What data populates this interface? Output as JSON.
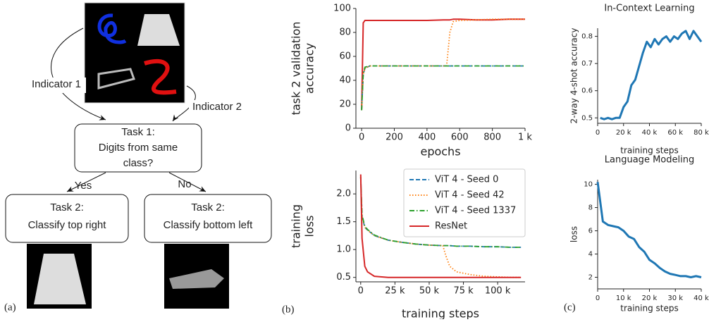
{
  "diagram": {
    "indicator_1": "Indicator 1",
    "indicator_2": "Indicator 2",
    "task_1": [
      "Task 1:",
      "Digits from same",
      "class?"
    ],
    "yes": "Yes",
    "no": "No",
    "task_2_left": [
      "Task 2:",
      "Classify top right"
    ],
    "task_2_right": [
      "Task 2:",
      "Classify bottom left"
    ],
    "panel_a": "(a)",
    "panel_b": "(b)",
    "panel_c": "(c)"
  },
  "chart_data": [
    {
      "type": "line",
      "xlabel": "epochs",
      "ylabel": [
        "task 2  validation",
        "accuracy"
      ],
      "x": [
        0,
        10,
        20,
        50,
        100,
        200,
        300,
        400,
        500,
        520,
        540,
        560,
        600,
        700,
        800,
        900,
        1000
      ],
      "series": [
        {
          "color": "#d62728",
          "linestyle": "solid",
          "values": [
            15,
            88,
            90,
            90,
            90,
            90,
            90,
            90,
            90.5,
            90.5,
            90.5,
            91,
            91,
            90.5,
            90.5,
            91,
            91
          ]
        },
        {
          "color": "#1f77b4",
          "linestyle": "dashed",
          "values": [
            15,
            45,
            50,
            52,
            52,
            52,
            52,
            52,
            52,
            52,
            52,
            52,
            52,
            52,
            52,
            52,
            52
          ]
        },
        {
          "color": "#ff7f0e",
          "linestyle": "dotted",
          "values": [
            15,
            45,
            50,
            52,
            52,
            52,
            52,
            52,
            52,
            52,
            80,
            89,
            90,
            90.5,
            91,
            91,
            91
          ]
        },
        {
          "color": "#2ca02c",
          "linestyle": "dashdot",
          "values": [
            15,
            46,
            51,
            52,
            52,
            52,
            52,
            52,
            52,
            52,
            52,
            52,
            52,
            52,
            52,
            52,
            52
          ]
        }
      ],
      "xlim": [
        -35,
        1000
      ],
      "ylim": [
        0,
        100
      ],
      "xticks": [
        0,
        200,
        400,
        600,
        800,
        {
          "value": 1000,
          "label": "1 k"
        }
      ],
      "yticks": [
        0,
        20,
        40,
        60,
        80,
        100
      ]
    },
    {
      "type": "line",
      "xlabel": "training steps",
      "ylabel": [
        "training",
        "loss"
      ],
      "legend": "upper right",
      "x": [
        0,
        1000,
        3000,
        5000,
        10000,
        20000,
        30000,
        40000,
        50000,
        60000,
        62000,
        65000,
        70000,
        80000,
        90000,
        100000,
        110000,
        117000
      ],
      "series": [
        {
          "name": "ViT 4 - Seed 0",
          "color": "#1f77b4",
          "linestyle": "dashed",
          "values": [
            2.3,
            1.6,
            1.4,
            1.35,
            1.25,
            1.17,
            1.13,
            1.1,
            1.08,
            1.07,
            1.07,
            1.07,
            1.06,
            1.06,
            1.05,
            1.05,
            1.04,
            1.04
          ]
        },
        {
          "name": "ViT 4 - Seed 42",
          "color": "#ff7f0e",
          "linestyle": "dotted",
          "values": [
            2.3,
            1.6,
            1.4,
            1.35,
            1.25,
            1.17,
            1.13,
            1.1,
            1.08,
            1.07,
            0.9,
            0.7,
            0.6,
            0.55,
            0.52,
            0.51,
            0.5,
            0.5
          ]
        },
        {
          "name": "ViT 4 - Seed 1337",
          "color": "#2ca02c",
          "linestyle": "dashdot",
          "values": [
            2.3,
            1.62,
            1.42,
            1.36,
            1.26,
            1.17,
            1.13,
            1.1,
            1.08,
            1.07,
            1.07,
            1.07,
            1.06,
            1.06,
            1.05,
            1.05,
            1.04,
            1.04
          ]
        },
        {
          "name": "ResNet",
          "color": "#d62728",
          "linestyle": "solid",
          "values": [
            2.35,
            1.2,
            0.7,
            0.6,
            0.52,
            0.5,
            0.5,
            0.5,
            0.5,
            0.5,
            0.5,
            0.5,
            0.5,
            0.5,
            0.5,
            0.5,
            0.5,
            0.5
          ]
        }
      ],
      "xlim": [
        -3500,
        120000
      ],
      "ylim": [
        0.42,
        2.42
      ],
      "xticks": [
        0,
        {
          "value": 25000,
          "label": "25 k"
        },
        {
          "value": 50000,
          "label": "50 k"
        },
        {
          "value": 75000,
          "label": "75 k"
        },
        {
          "value": 100000,
          "label": "100 k"
        }
      ],
      "yticks": [
        0.5,
        {
          "value": 1,
          "label": "1.0"
        },
        1.5,
        {
          "value": 2,
          "label": "2.0"
        }
      ]
    },
    {
      "type": "line",
      "title": "In-Context Learning",
      "xlabel": "training steps",
      "ylabel": "2-way 4-shot accuracy",
      "x": [
        2000,
        5000,
        8000,
        11000,
        14000,
        17000,
        20000,
        23000,
        26000,
        29000,
        32000,
        35000,
        38000,
        41000,
        44000,
        47000,
        50000,
        53000,
        56000,
        59000,
        62000,
        65000,
        68000,
        71000,
        74000,
        77000,
        80000
      ],
      "series": [
        {
          "color": "#1f77b4",
          "linestyle": "solid",
          "values": [
            0.5,
            0.495,
            0.5,
            0.495,
            0.5,
            0.5,
            0.54,
            0.56,
            0.62,
            0.64,
            0.69,
            0.74,
            0.78,
            0.76,
            0.79,
            0.77,
            0.79,
            0.8,
            0.78,
            0.8,
            0.79,
            0.81,
            0.82,
            0.79,
            0.82,
            0.8,
            0.78
          ]
        }
      ],
      "xlim": [
        0,
        80000
      ],
      "ylim": [
        0.48,
        0.83
      ],
      "xticks": [
        0,
        {
          "value": 20000,
          "label": "20 k"
        },
        {
          "value": 40000,
          "label": "40 k"
        },
        {
          "value": 60000,
          "label": "60 k"
        },
        {
          "value": 80000,
          "label": "80 k"
        }
      ],
      "yticks": [
        0.5,
        0.6,
        0.7,
        0.8
      ]
    },
    {
      "type": "line",
      "title": "Language Modeling",
      "xlabel": "training steps",
      "ylabel": "loss",
      "x": [
        0,
        2000,
        4000,
        6000,
        8000,
        10000,
        12000,
        14000,
        16000,
        18000,
        20000,
        22000,
        24000,
        26000,
        28000,
        30000,
        32000,
        34000,
        36000,
        38000,
        40000
      ],
      "series": [
        {
          "color": "#1f77b4",
          "linestyle": "solid",
          "values": [
            10.2,
            6.8,
            6.5,
            6.4,
            6.3,
            6.0,
            5.5,
            5.3,
            4.6,
            4.2,
            3.5,
            3.2,
            2.8,
            2.5,
            2.3,
            2.2,
            2.1,
            2.1,
            2.0,
            2.1,
            2.0
          ]
        }
      ],
      "xlim": [
        0,
        40000
      ],
      "ylim": [
        1,
        10.4
      ],
      "xticks": [
        0,
        {
          "value": 10000,
          "label": "10 k"
        },
        {
          "value": 20000,
          "label": "20 k"
        },
        {
          "value": 30000,
          "label": "30 k"
        },
        {
          "value": 40000,
          "label": "40 k"
        }
      ],
      "yticks": [
        2,
        4,
        6,
        8,
        10
      ]
    }
  ]
}
